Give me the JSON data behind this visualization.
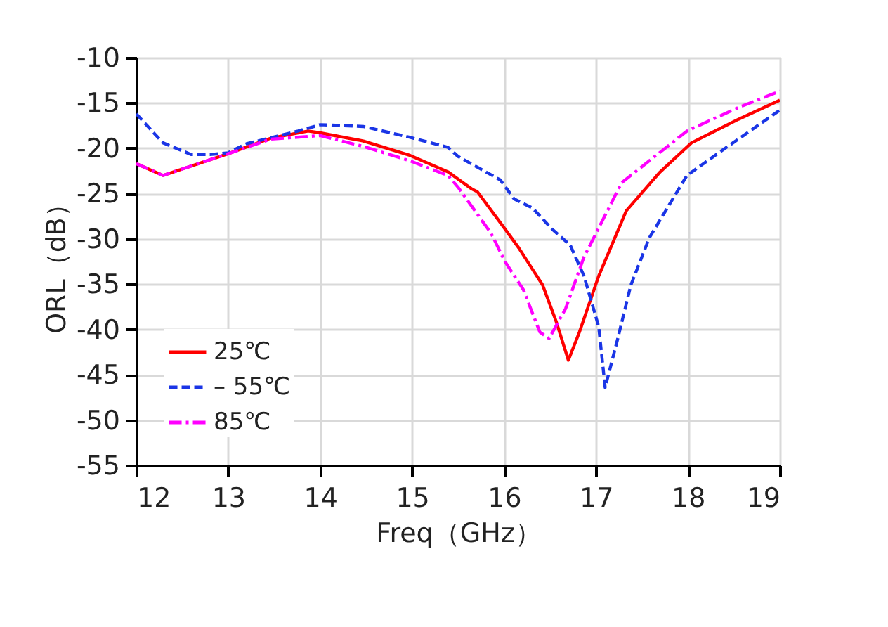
{
  "chart_data": {
    "type": "line",
    "xlabel": "Freq（GHz）",
    "ylabel": "ORL（dB）",
    "xlim": [
      12,
      19
    ],
    "ylim": [
      -55,
      -10
    ],
    "xticks": [
      12,
      13,
      14,
      15,
      16,
      17,
      18,
      19
    ],
    "yticks": [
      -55,
      -50,
      -45,
      -40,
      -35,
      -30,
      -25,
      -20,
      -15,
      -10
    ],
    "grid": true,
    "legend": "bottom left",
    "marker": "none",
    "series": [
      {
        "name": "25℃",
        "color": "#ff0000",
        "line_style": "solid",
        "x": [
          12,
          12.29,
          13,
          13.46,
          13.87,
          14,
          14.47,
          14.98,
          15.39,
          15.65,
          15.71,
          16.01,
          16.16,
          16.42,
          16.57,
          16.7,
          16.82,
          17.03,
          17.33,
          17.69,
          18.04,
          18.55,
          19
        ],
        "values": [
          -21.7,
          -23.0,
          -20.6,
          -18.9,
          -18.1,
          -18.3,
          -19.2,
          -20.8,
          -22.6,
          -24.5,
          -24.8,
          -28.9,
          -31.0,
          -35.1,
          -39.2,
          -43.4,
          -40.3,
          -34.1,
          -26.9,
          -22.7,
          -19.4,
          -16.8,
          -14.7
        ]
      },
      {
        "name": "– 55℃",
        "color": "#1a35e6",
        "line_style": "dashed",
        "x": [
          12,
          12.29,
          12.6,
          12.8,
          13,
          13.2,
          13.76,
          14,
          14.47,
          14.98,
          15.39,
          15.5,
          15.96,
          16.11,
          16.31,
          16.52,
          16.72,
          16.87,
          17.03,
          17.1,
          17.23,
          17.38,
          17.58,
          17.99,
          18.35,
          19
        ],
        "values": [
          -16.2,
          -19.4,
          -20.7,
          -20.7,
          -20.5,
          -19.5,
          -18.1,
          -17.4,
          -17.6,
          -18.8,
          -19.9,
          -20.9,
          -23.5,
          -25.6,
          -26.6,
          -28.9,
          -30.7,
          -34.1,
          -39.7,
          -46.4,
          -41.3,
          -35.1,
          -29.9,
          -23.0,
          -20.4,
          -15.8
        ]
      },
      {
        "name": "85℃",
        "color": "#ff00ff",
        "line_style": "dashdot",
        "x": [
          12,
          12.29,
          13,
          13.46,
          14,
          14.47,
          14.98,
          15.39,
          15.5,
          15.86,
          16.01,
          16.21,
          16.39,
          16.49,
          16.67,
          16.87,
          17.28,
          17.99,
          18.55,
          19
        ],
        "values": [
          -21.7,
          -23.0,
          -20.6,
          -19.0,
          -18.6,
          -19.8,
          -21.4,
          -23.0,
          -24.3,
          -29.4,
          -32.5,
          -35.6,
          -40.3,
          -41.0,
          -37.7,
          -32.0,
          -23.8,
          -18.1,
          -15.5,
          -13.7
        ]
      }
    ]
  }
}
